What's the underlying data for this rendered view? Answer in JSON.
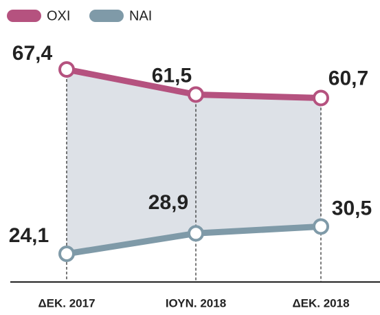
{
  "chart_data": {
    "type": "line",
    "categories": [
      "ΔΕΚ. 2017",
      "ΙΟΥΝ. 2018",
      "ΔΕΚ. 2018"
    ],
    "series": [
      {
        "name": "OXI",
        "color": "#b5527f",
        "values": [
          67.4,
          61.5,
          60.7
        ],
        "value_labels": [
          "67,4",
          "61,5",
          "60,7"
        ]
      },
      {
        "name": "NAI",
        "color": "#7f9aa8",
        "values": [
          24.1,
          28.9,
          30.5
        ],
        "value_labels": [
          "24,1",
          "28,9",
          "30,5"
        ]
      }
    ]
  }
}
